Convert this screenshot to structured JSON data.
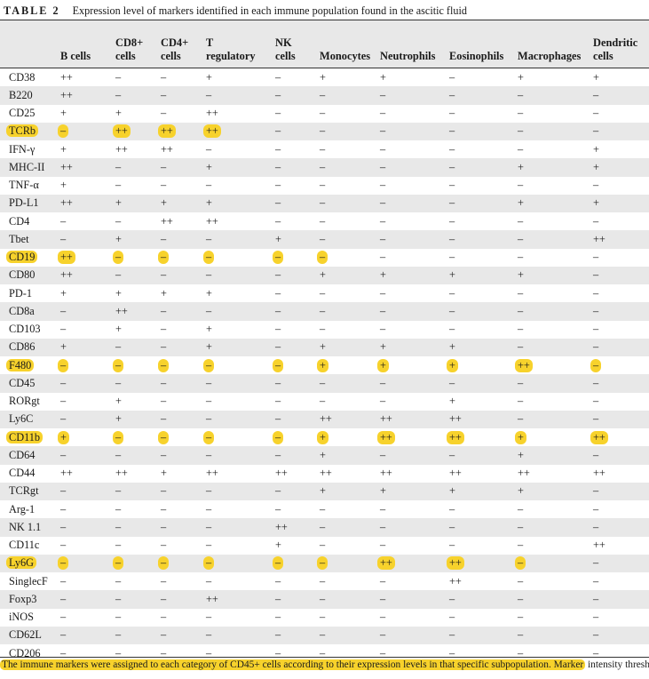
{
  "caption": {
    "label": "TABLE 2",
    "text": "Expression level of markers identified in each immune population found in the ascitic fluid"
  },
  "columns": [
    "B cells",
    "CD8+\ncells",
    "CD4+\ncells",
    "T\nregulatory",
    "NK\ncells",
    "Monocytes",
    "Neutrophils",
    "Eosinophils",
    "Macrophages",
    "Dendritic\ncells"
  ],
  "rows": [
    {
      "marker": "CD38",
      "hl": false,
      "v": [
        "++",
        "–",
        "–",
        "+",
        "–",
        "+",
        "+",
        "–",
        "+",
        "+"
      ]
    },
    {
      "marker": "B220",
      "hl": false,
      "v": [
        "++",
        "–",
        "–",
        "–",
        "–",
        "–",
        "–",
        "–",
        "–",
        "–"
      ]
    },
    {
      "marker": "CD25",
      "hl": false,
      "v": [
        "+",
        "+",
        "–",
        "++",
        "–",
        "–",
        "–",
        "–",
        "–",
        "–"
      ]
    },
    {
      "marker": "TCRb",
      "hl": true,
      "v": [
        "–",
        "++",
        "++",
        "++",
        "–",
        "–",
        "–",
        "–",
        "–",
        "–"
      ]
    },
    {
      "marker": "IFN-γ",
      "hl": false,
      "v": [
        "+",
        "++",
        "++",
        "–",
        "–",
        "–",
        "–",
        "–",
        "–",
        "+"
      ]
    },
    {
      "marker": "MHC-II",
      "hl": false,
      "v": [
        "++",
        "–",
        "–",
        "+",
        "–",
        "–",
        "–",
        "–",
        "+",
        "+"
      ]
    },
    {
      "marker": "TNF-α",
      "hl": false,
      "v": [
        "+",
        "–",
        "–",
        "–",
        "–",
        "–",
        "–",
        "–",
        "–",
        "–"
      ]
    },
    {
      "marker": "PD-L1",
      "hl": false,
      "v": [
        "++",
        "+",
        "+",
        "+",
        "–",
        "–",
        "–",
        "–",
        "+",
        "+"
      ]
    },
    {
      "marker": "CD4",
      "hl": false,
      "v": [
        "–",
        "–",
        "++",
        "++",
        "–",
        "–",
        "–",
        "–",
        "–",
        "–"
      ]
    },
    {
      "marker": "Tbet",
      "hl": false,
      "v": [
        "–",
        "+",
        "–",
        "–",
        "+",
        "–",
        "–",
        "–",
        "–",
        "++"
      ]
    },
    {
      "marker": "CD19",
      "hl": true,
      "v": [
        "++",
        "–",
        "–",
        "–",
        "–",
        "–",
        "–",
        "–",
        "–",
        "–"
      ]
    },
    {
      "marker": "CD80",
      "hl": false,
      "v": [
        "++",
        "–",
        "–",
        "–",
        "–",
        "+",
        "+",
        "+",
        "+",
        "–"
      ]
    },
    {
      "marker": "PD-1",
      "hl": false,
      "v": [
        "+",
        "+",
        "+",
        "+",
        "–",
        "–",
        "–",
        "–",
        "–",
        "–"
      ]
    },
    {
      "marker": "CD8a",
      "hl": false,
      "v": [
        "–",
        "++",
        "–",
        "–",
        "–",
        "–",
        "–",
        "–",
        "–",
        "–"
      ]
    },
    {
      "marker": "CD103",
      "hl": false,
      "v": [
        "–",
        "+",
        "–",
        "+",
        "–",
        "–",
        "–",
        "–",
        "–",
        "–"
      ]
    },
    {
      "marker": "CD86",
      "hl": false,
      "v": [
        "+",
        "–",
        "–",
        "+",
        "–",
        "+",
        "+",
        "+",
        "–",
        "–"
      ]
    },
    {
      "marker": "F480",
      "hl": true,
      "v": [
        "–",
        "–",
        "–",
        "–",
        "–",
        "+",
        "+",
        "+",
        "++",
        "–"
      ]
    },
    {
      "marker": "CD45",
      "hl": false,
      "v": [
        "–",
        "–",
        "–",
        "–",
        "–",
        "–",
        "–",
        "–",
        "–",
        "–"
      ]
    },
    {
      "marker": "RORgt",
      "hl": false,
      "v": [
        "–",
        "+",
        "–",
        "–",
        "–",
        "–",
        "–",
        "+",
        "–",
        "–"
      ]
    },
    {
      "marker": "Ly6C",
      "hl": false,
      "v": [
        "–",
        "+",
        "–",
        "–",
        "–",
        "++",
        "++",
        "++",
        "–",
        "–"
      ]
    },
    {
      "marker": "CD11b",
      "hl": true,
      "v": [
        "+",
        "–",
        "–",
        "–",
        "–",
        "+",
        "++",
        "++",
        "+",
        "++"
      ]
    },
    {
      "marker": "CD64",
      "hl": false,
      "v": [
        "–",
        "–",
        "–",
        "–",
        "–",
        "+",
        "–",
        "–",
        "+",
        "–"
      ]
    },
    {
      "marker": "CD44",
      "hl": false,
      "v": [
        "++",
        "++",
        "+",
        "++",
        "++",
        "++",
        "++",
        "++",
        "++",
        "++"
      ]
    },
    {
      "marker": "TCRgt",
      "hl": false,
      "v": [
        "–",
        "–",
        "–",
        "–",
        "–",
        "+",
        "+",
        "+",
        "+",
        "–"
      ]
    },
    {
      "marker": "Arg-1",
      "hl": false,
      "v": [
        "–",
        "–",
        "–",
        "–",
        "–",
        "–",
        "–",
        "–",
        "–",
        "–"
      ]
    },
    {
      "marker": "NK 1.1",
      "hl": false,
      "v": [
        "–",
        "–",
        "–",
        "–",
        "++",
        "–",
        "–",
        "–",
        "–",
        "–"
      ]
    },
    {
      "marker": "CD11c",
      "hl": false,
      "v": [
        "–",
        "–",
        "–",
        "–",
        "+",
        "–",
        "–",
        "–",
        "–",
        "++"
      ]
    },
    {
      "marker": "Ly6G",
      "hl": true,
      "v": [
        "–",
        "–",
        "–",
        "–",
        "–",
        "–",
        "++",
        "++",
        "–",
        "–"
      ]
    },
    {
      "marker": "SinglecF",
      "hl": false,
      "v": [
        "–",
        "–",
        "–",
        "–",
        "–",
        "–",
        "–",
        "++",
        "–",
        "–"
      ]
    },
    {
      "marker": "Foxp3",
      "hl": false,
      "v": [
        "–",
        "–",
        "–",
        "++",
        "–",
        "–",
        "–",
        "–",
        "–",
        "–"
      ]
    },
    {
      "marker": "iNOS",
      "hl": false,
      "v": [
        "–",
        "–",
        "–",
        "–",
        "–",
        "–",
        "–",
        "–",
        "–",
        "–"
      ]
    },
    {
      "marker": "CD62L",
      "hl": false,
      "v": [
        "–",
        "–",
        "–",
        "–",
        "–",
        "–",
        "–",
        "–",
        "–",
        "–"
      ]
    },
    {
      "marker": "CD206",
      "hl": false,
      "v": [
        "–",
        "–",
        "–",
        "–",
        "–",
        "–",
        "–",
        "–",
        "–",
        "–"
      ]
    }
  ],
  "highlighted_cells": {
    "TCRb": [
      0,
      1,
      2,
      3
    ],
    "CD19": [
      0,
      1,
      2,
      3,
      4,
      5
    ],
    "F480": [
      0,
      1,
      2,
      3,
      4,
      5,
      6,
      7,
      8,
      9
    ],
    "CD11b": [
      0,
      1,
      2,
      3,
      4,
      5,
      6,
      7,
      8,
      9
    ],
    "Ly6G": [
      0,
      1,
      2,
      3,
      4,
      5,
      6,
      7,
      8
    ]
  },
  "footnote": {
    "highlighted": "The immune markers were assigned to each category of CD45+ cells according to their expression levels in that specific subpopulation. Marker",
    "rest": " intensity thresholds"
  },
  "colors": {
    "highlight": "#f7d22c",
    "shade": "#e8e8e8"
  }
}
